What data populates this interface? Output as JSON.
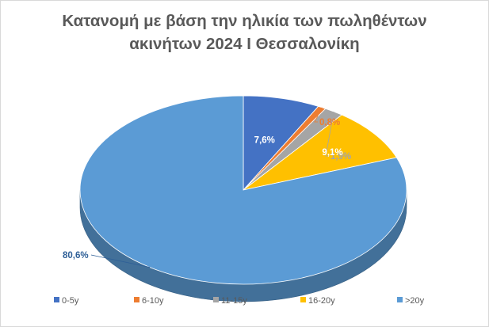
{
  "chart_data": {
    "type": "pie",
    "title_lines": [
      "Κατανομή με βάση την ηλικία των πωληθέντων",
      "ακινήτων 2024 Ι Θεσσαλονίκη"
    ],
    "categories": [
      "0-5y",
      "6-10y",
      "11-15y",
      "16-20y",
      ">20y"
    ],
    "values": [
      7.6,
      0.8,
      1.9,
      9.1,
      80.6
    ],
    "labels": [
      "7,6%",
      "0,8%",
      "1,9%",
      "9,1%",
      "80,6%"
    ],
    "colors": [
      "#4472c4",
      "#ed7d31",
      "#a5a5a5",
      "#ffc000",
      "#5b9bd5"
    ],
    "label_colors": [
      "#ffffff",
      "#ed7d31",
      "#a5a5a5",
      "#ffffff",
      "#2e5f97"
    ],
    "style": "3d",
    "legend_position": "bottom"
  }
}
